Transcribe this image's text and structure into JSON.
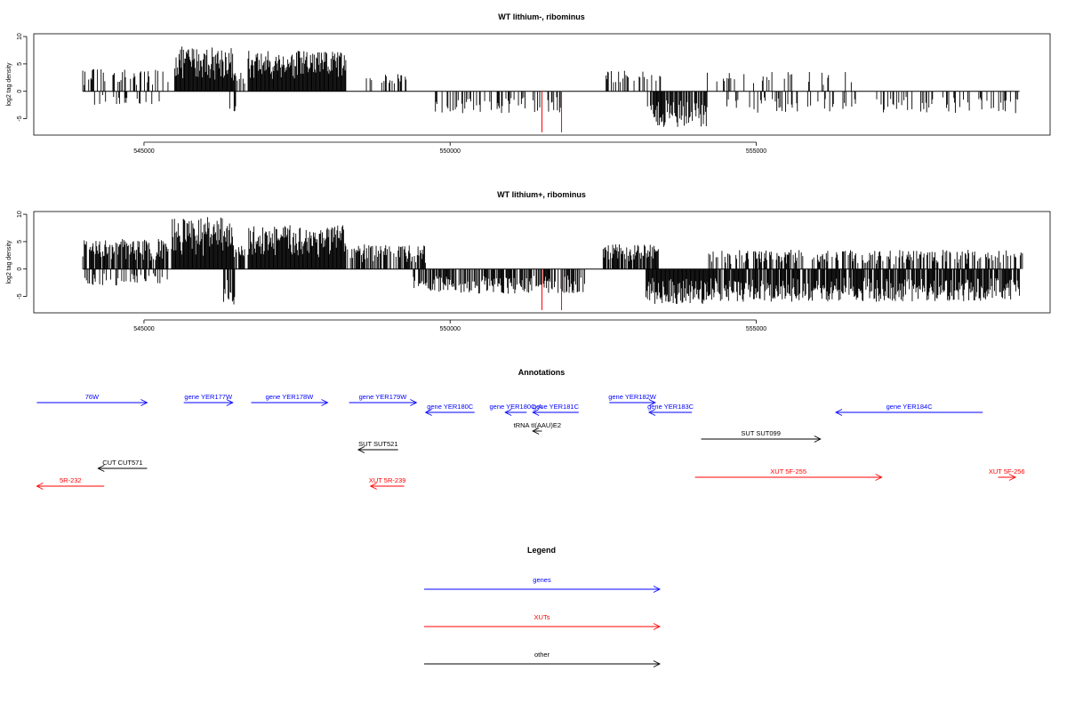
{
  "chart_data": [
    {
      "type": "bar",
      "title": "WT lithium-, ribominus",
      "ylabel": "log2 tag density",
      "xlim": [
        543200,
        559800
      ],
      "ylim": [
        -8,
        10.5
      ],
      "x_ticks": [
        545000,
        550000,
        555000
      ],
      "x_tick_labels": [
        "545000",
        "550000",
        "555000"
      ],
      "y_ticks": [
        -5,
        0,
        5,
        10
      ],
      "y_tick_labels": [
        "-5",
        "0",
        "5",
        "10"
      ],
      "bar_color": "#000000",
      "highlight_color": "#ff0000",
      "highlight_bars": [
        {
          "x": 551500,
          "value": -7.5
        },
        {
          "x": 551820,
          "value": -7.5
        }
      ],
      "plus_strand_density": [
        {
          "from": 544000,
          "to": 545400,
          "max": 4.2,
          "fill": 0.3
        },
        {
          "from": 545500,
          "to": 546450,
          "max": 8.2,
          "fill": 1.0
        },
        {
          "from": 546450,
          "to": 546650,
          "max": 3.5,
          "fill": 0.6
        },
        {
          "from": 546700,
          "to": 548300,
          "max": 7.5,
          "fill": 1.0
        },
        {
          "from": 548500,
          "to": 549300,
          "max": 3.2,
          "fill": 0.2
        },
        {
          "from": 552500,
          "to": 553500,
          "max": 4.0,
          "fill": 0.3
        },
        {
          "from": 554200,
          "to": 556600,
          "max": 3.6,
          "fill": 0.15
        }
      ],
      "minus_strand_density": [
        {
          "from": 544000,
          "to": 545400,
          "max": 2.5,
          "fill": 0.15
        },
        {
          "from": 546400,
          "to": 546500,
          "max": 4.0,
          "fill": 0.5
        },
        {
          "from": 549700,
          "to": 551800,
          "max": 4.0,
          "fill": 0.3
        },
        {
          "from": 553200,
          "to": 554200,
          "max": 6.5,
          "fill": 0.85
        },
        {
          "from": 554400,
          "to": 559300,
          "max": 4.0,
          "fill": 0.25
        }
      ]
    },
    {
      "type": "bar",
      "title": "WT lithium+, ribominus",
      "ylabel": "log2 tag density",
      "xlim": [
        543200,
        559800
      ],
      "ylim": [
        -8,
        10.5
      ],
      "x_ticks": [
        545000,
        550000,
        555000
      ],
      "x_tick_labels": [
        "545000",
        "550000",
        "555000"
      ],
      "y_ticks": [
        -5,
        0,
        5,
        10
      ],
      "y_tick_labels": [
        "-5",
        "0",
        "5",
        "10"
      ],
      "bar_color": "#000000",
      "highlight_color": "#ff0000",
      "highlight_bars": [
        {
          "x": 551500,
          "value": -7.5
        },
        {
          "x": 551820,
          "value": -7.5
        }
      ],
      "plus_strand_density": [
        {
          "from": 544000,
          "to": 545400,
          "max": 5.5,
          "fill": 0.85
        },
        {
          "from": 545450,
          "to": 546450,
          "max": 9.5,
          "fill": 1.0
        },
        {
          "from": 546450,
          "to": 546650,
          "max": 4.5,
          "fill": 0.7
        },
        {
          "from": 546700,
          "to": 548300,
          "max": 8.0,
          "fill": 1.0
        },
        {
          "from": 548300,
          "to": 549600,
          "max": 4.5,
          "fill": 0.7
        },
        {
          "from": 552500,
          "to": 553400,
          "max": 4.5,
          "fill": 0.8
        },
        {
          "from": 554200,
          "to": 559400,
          "max": 3.5,
          "fill": 0.5
        }
      ],
      "minus_strand_density": [
        {
          "from": 544000,
          "to": 545400,
          "max": 3.0,
          "fill": 0.3
        },
        {
          "from": 546300,
          "to": 546500,
          "max": 7.0,
          "fill": 0.6
        },
        {
          "from": 549400,
          "to": 552200,
          "max": 4.5,
          "fill": 0.7
        },
        {
          "from": 553200,
          "to": 554200,
          "max": 6.5,
          "fill": 1.0
        },
        {
          "from": 554200,
          "to": 559300,
          "max": 6.0,
          "fill": 0.85
        }
      ]
    }
  ],
  "annotations": {
    "title": "Annotations",
    "features": [
      {
        "label": "76W",
        "type": "gene",
        "strand": "+",
        "start": 543250,
        "end": 545050,
        "row": 0
      },
      {
        "label": "gene YER177W",
        "type": "gene",
        "strand": "+",
        "start": 545650,
        "end": 546450,
        "row": 0
      },
      {
        "label": "gene YER178W",
        "type": "gene",
        "strand": "+",
        "start": 546750,
        "end": 548000,
        "row": 0
      },
      {
        "label": "gene YER179W",
        "type": "gene",
        "strand": "+",
        "start": 548350,
        "end": 549450,
        "row": 0
      },
      {
        "label": "gene YER180C",
        "type": "gene",
        "strand": "-",
        "start": 549600,
        "end": 550400,
        "row": 1
      },
      {
        "label": "gene YER180C-A",
        "type": "gene",
        "strand": "-",
        "start": 550900,
        "end": 551250,
        "row": 1
      },
      {
        "label": "gene YER181C",
        "type": "gene",
        "strand": "-",
        "start": 551350,
        "end": 552100,
        "row": 1
      },
      {
        "label": "gene YER182W",
        "type": "gene",
        "strand": "+",
        "start": 552600,
        "end": 553350,
        "row": 0
      },
      {
        "label": "gene YER183C",
        "type": "gene",
        "strand": "-",
        "start": 553250,
        "end": 553950,
        "row": 1
      },
      {
        "label": "gene YER184C",
        "type": "gene",
        "strand": "-",
        "start": 556300,
        "end": 558700,
        "row": 1
      },
      {
        "label": "tRNA tI(AAU)E2",
        "type": "other",
        "strand": "-",
        "start": 551350,
        "end": 551500,
        "row": 2
      },
      {
        "label": "SUT SUT099",
        "type": "other",
        "strand": "+",
        "start": 554100,
        "end": 556050,
        "row": 3
      },
      {
        "label": "SUT SUT521",
        "type": "other",
        "strand": "-",
        "start": 548500,
        "end": 549150,
        "row": 4
      },
      {
        "label": "CUT CUT571",
        "type": "other",
        "strand": "-",
        "start": 544250,
        "end": 545050,
        "row": 5
      },
      {
        "label": "5R-232",
        "type": "xut",
        "strand": "-",
        "start": 543250,
        "end": 544350,
        "row": 6
      },
      {
        "label": "XUT 5R-239",
        "type": "xut",
        "strand": "-",
        "start": 548700,
        "end": 549250,
        "row": 6
      },
      {
        "label": "XUT 5F-255",
        "type": "xut",
        "strand": "+",
        "start": 554000,
        "end": 557050,
        "row": 7
      },
      {
        "label": "XUT 5F-256",
        "type": "xut",
        "strand": "+",
        "start": 558950,
        "end": 559600,
        "row": 7
      }
    ]
  },
  "legend": {
    "title": "Legend",
    "items": [
      {
        "label": "genes",
        "color": "#0000ff"
      },
      {
        "label": "XUTs",
        "color": "#ff0000"
      },
      {
        "label": "other",
        "color": "#000000"
      }
    ]
  },
  "colors": {
    "gene": "#0000ff",
    "xut": "#ff0000",
    "other": "#000000"
  }
}
